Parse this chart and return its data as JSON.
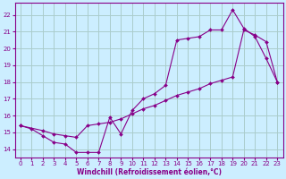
{
  "background_color": "#cceeff",
  "grid_color": "#aacccc",
  "line_color": "#880088",
  "marker_color": "#880088",
  "xlabel": "Windchill (Refroidissement éolien,°C)",
  "xlim": [
    -0.5,
    23.5
  ],
  "ylim": [
    13.5,
    22.7
  ],
  "xticks": [
    0,
    1,
    2,
    3,
    4,
    5,
    6,
    7,
    8,
    9,
    10,
    11,
    12,
    13,
    14,
    15,
    16,
    17,
    18,
    19,
    20,
    21,
    22,
    23
  ],
  "yticks": [
    14,
    15,
    16,
    17,
    18,
    19,
    20,
    21,
    22
  ],
  "curve1_x": [
    0,
    1,
    2,
    3,
    4,
    5,
    6,
    7,
    8,
    9,
    10,
    11,
    12,
    13,
    14,
    15,
    16,
    17,
    18,
    19,
    20,
    21,
    22,
    23
  ],
  "curve1_y": [
    15.4,
    15.2,
    14.8,
    14.4,
    14.3,
    13.8,
    13.8,
    13.8,
    15.9,
    14.9,
    16.3,
    17.0,
    17.3,
    17.8,
    20.5,
    20.6,
    20.7,
    21.1,
    21.1,
    22.3,
    21.2,
    20.7,
    19.4,
    18.0
  ],
  "curve2_x": [
    0,
    2,
    3,
    4,
    5,
    6,
    7,
    8,
    9,
    10,
    11,
    12,
    13,
    14,
    15,
    16,
    17,
    18,
    19,
    20,
    21,
    22,
    23
  ],
  "curve2_y": [
    15.4,
    15.1,
    14.9,
    14.8,
    14.7,
    15.4,
    15.5,
    15.6,
    15.8,
    16.1,
    16.4,
    16.6,
    16.9,
    17.2,
    17.4,
    17.6,
    17.9,
    18.1,
    18.3,
    21.1,
    20.8,
    20.4,
    18.0
  ],
  "xlabel_fontsize": 5.5,
  "tick_fontsize": 5.0
}
